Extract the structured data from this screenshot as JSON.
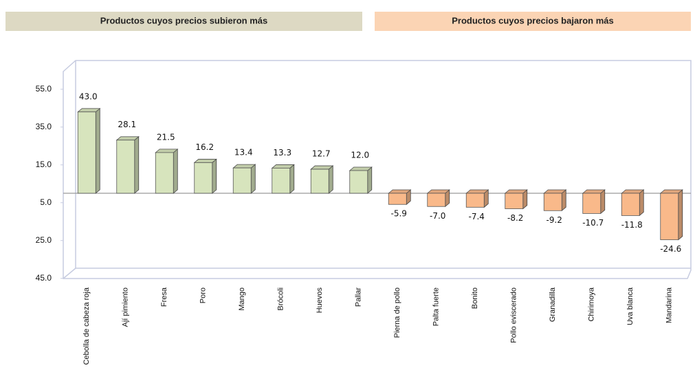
{
  "chart_data": {
    "type": "bar3d",
    "headers": [
      "Productos cuyos precios subieron más",
      "Productos cuyos precios bajaron más"
    ],
    "header_colors": [
      "#ddd9c3",
      "#fbd4b4"
    ],
    "categories": [
      "Cebolla de cabeza roja",
      "Ají pimiento",
      "Fresa",
      "Poro",
      "Mango",
      "Brócoli",
      "Huevos",
      "Pallar",
      "Pierna de pollo",
      "Palta fuerte",
      "Bonito",
      "Pollo eviscerado",
      "Granadilla",
      "Chirimoya",
      "Uva blanca",
      "Mandarina"
    ],
    "values": [
      43.0,
      28.1,
      21.5,
      16.2,
      13.4,
      13.3,
      12.7,
      12.0,
      -5.9,
      -7.0,
      -7.4,
      -8.2,
      -9.2,
      -10.7,
      -11.8,
      -24.6
    ],
    "value_labels": [
      "43.0",
      "28.1",
      "21.5",
      "16.2",
      "13.4",
      "13.3",
      "12.7",
      "12.0",
      "-5.9",
      "-7.0",
      "-7.4",
      "-8.2",
      "-9.2",
      "-10.7",
      "-11.8",
      "-24.6"
    ],
    "colors": [
      "#d7e4bd",
      "#d7e4bd",
      "#d7e4bd",
      "#d7e4bd",
      "#d7e4bd",
      "#d7e4bd",
      "#d7e4bd",
      "#d7e4bd",
      "#f9b98a",
      "#f9b98a",
      "#f9b98a",
      "#f9b98a",
      "#f9b98a",
      "#f9b98a",
      "#f9b98a",
      "#f9b98a"
    ],
    "ylim": [
      -45,
      65
    ],
    "yticks": [
      {
        "value": 55,
        "label": "55.0"
      },
      {
        "value": 35,
        "label": "35.0"
      },
      {
        "value": 15,
        "label": "15.0"
      },
      {
        "value": -5,
        "label": "5.0"
      },
      {
        "value": -25,
        "label": "25.0"
      },
      {
        "value": -45,
        "label": "45.0"
      }
    ]
  }
}
